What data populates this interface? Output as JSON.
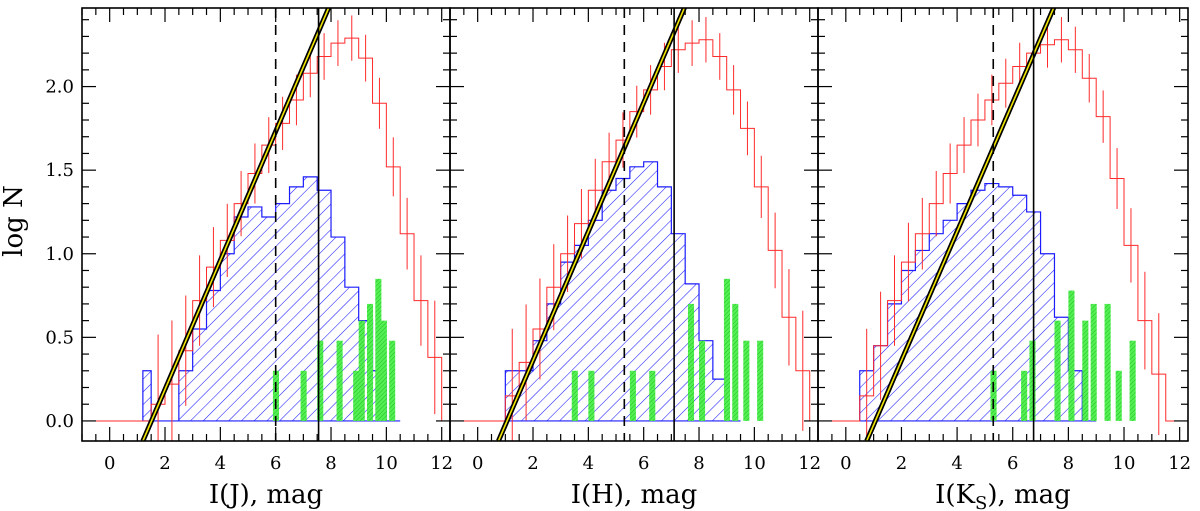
{
  "chart_data": {
    "type": "histogram",
    "ylabel": "log N",
    "ylim": [
      -0.12,
      2.47
    ],
    "xlim": [
      -1,
      12.3
    ],
    "xticks": [
      0,
      2,
      4,
      6,
      8,
      10,
      12
    ],
    "yticks": [
      0.0,
      0.5,
      1.0,
      1.5,
      2.0
    ],
    "ytick_labels": [
      "0.0",
      "0.5",
      "1.0",
      "1.5",
      "2.0"
    ],
    "colors": {
      "all": "#ff2a2a",
      "hatched": "#1c1cff",
      "green": "#22dd22",
      "fit": "#000000",
      "fit_inner": "#f0e600",
      "axis": "#000000"
    },
    "panels": [
      {
        "name": "I(J)",
        "xlabel_prefix": "I(J),  mag",
        "xlabel_sub": "",
        "xlabel_suffix": "",
        "dashed_x": 6.0,
        "solid_x": 7.55,
        "fit": {
          "x_start": 1.2,
          "slope": 0.375
        },
        "all_counts": [
          [
            -1.0,
            0
          ],
          [
            -0.5,
            0
          ],
          [
            0.0,
            0
          ],
          [
            0.5,
            0
          ],
          [
            1.0,
            0
          ],
          [
            1.5,
            0.1
          ],
          [
            2.0,
            0.22
          ],
          [
            2.5,
            0.42
          ],
          [
            3.0,
            0.72
          ],
          [
            3.5,
            0.92
          ],
          [
            4.0,
            1.08
          ],
          [
            4.5,
            1.3
          ],
          [
            5.0,
            1.48
          ],
          [
            5.5,
            1.65
          ],
          [
            6.0,
            1.78
          ],
          [
            6.5,
            1.92
          ],
          [
            7.0,
            2.08
          ],
          [
            7.5,
            2.18
          ],
          [
            8.0,
            2.26
          ],
          [
            8.5,
            2.29
          ],
          [
            9.0,
            2.17
          ],
          [
            9.5,
            1.9
          ],
          [
            10.0,
            1.52
          ],
          [
            10.5,
            1.12
          ],
          [
            11.0,
            0.72
          ],
          [
            11.5,
            0.38
          ],
          [
            12.0,
            0
          ]
        ],
        "hatched_counts": [
          [
            1.2,
            0.3
          ],
          [
            1.5,
            0
          ],
          [
            2.0,
            0
          ],
          [
            2.5,
            0.3
          ],
          [
            3.0,
            0.55
          ],
          [
            3.5,
            0.78
          ],
          [
            4.0,
            1.0
          ],
          [
            4.5,
            1.22
          ],
          [
            5.0,
            1.28
          ],
          [
            5.5,
            1.22
          ],
          [
            6.0,
            1.3
          ],
          [
            6.5,
            1.4
          ],
          [
            7.0,
            1.46
          ],
          [
            7.5,
            1.38
          ],
          [
            8.0,
            1.1
          ],
          [
            8.5,
            0.8
          ],
          [
            9.0,
            0.6
          ],
          [
            9.5,
            0.3
          ],
          [
            10.0,
            0
          ]
        ],
        "green_bars": [
          [
            5.9,
            0.3
          ],
          [
            6.9,
            0.3
          ],
          [
            7.5,
            0.48
          ],
          [
            8.2,
            0.48
          ],
          [
            8.8,
            0.3
          ],
          [
            9.0,
            0.6
          ],
          [
            9.3,
            0.7
          ],
          [
            9.6,
            0.85
          ],
          [
            9.8,
            0.6
          ],
          [
            10.1,
            0.48
          ]
        ]
      },
      {
        "name": "I(H)",
        "xlabel_prefix": "I(H),  mag",
        "xlabel_sub": "",
        "xlabel_suffix": "",
        "dashed_x": 5.3,
        "solid_x": 7.1,
        "fit": {
          "x_start": 0.75,
          "slope": 0.375
        },
        "all_counts": [
          [
            -1.0,
            0
          ],
          [
            -0.5,
            0
          ],
          [
            0.0,
            0
          ],
          [
            0.5,
            0
          ],
          [
            1.0,
            0.15
          ],
          [
            1.5,
            0.35
          ],
          [
            2.0,
            0.55
          ],
          [
            2.5,
            0.8
          ],
          [
            3.0,
            1.0
          ],
          [
            3.5,
            1.18
          ],
          [
            4.0,
            1.38
          ],
          [
            4.5,
            1.55
          ],
          [
            5.0,
            1.68
          ],
          [
            5.5,
            1.85
          ],
          [
            6.0,
            1.98
          ],
          [
            6.5,
            2.12
          ],
          [
            7.0,
            2.22
          ],
          [
            7.5,
            2.26
          ],
          [
            8.0,
            2.28
          ],
          [
            8.5,
            2.18
          ],
          [
            9.0,
            1.98
          ],
          [
            9.5,
            1.75
          ],
          [
            10.0,
            1.4
          ],
          [
            10.5,
            1.02
          ],
          [
            11.0,
            0.62
          ],
          [
            11.5,
            0.3
          ],
          [
            12.0,
            0
          ]
        ],
        "hatched_counts": [
          [
            1.0,
            0.3
          ],
          [
            1.5,
            0.3
          ],
          [
            2.0,
            0.48
          ],
          [
            2.5,
            0.7
          ],
          [
            3.0,
            0.95
          ],
          [
            3.5,
            1.05
          ],
          [
            4.0,
            1.2
          ],
          [
            4.5,
            1.38
          ],
          [
            5.0,
            1.45
          ],
          [
            5.5,
            1.52
          ],
          [
            6.0,
            1.55
          ],
          [
            6.5,
            1.4
          ],
          [
            7.0,
            1.12
          ],
          [
            7.5,
            0.82
          ],
          [
            8.0,
            0.48
          ],
          [
            8.5,
            0.25
          ],
          [
            9.0,
            0
          ]
        ],
        "green_bars": [
          [
            3.4,
            0.3
          ],
          [
            4.0,
            0.3
          ],
          [
            5.5,
            0.3
          ],
          [
            6.2,
            0.3
          ],
          [
            7.6,
            0.7
          ],
          [
            8.0,
            0.48
          ],
          [
            8.9,
            0.85
          ],
          [
            9.2,
            0.7
          ],
          [
            9.6,
            0.48
          ],
          [
            10.1,
            0.48
          ]
        ]
      },
      {
        "name": "I(KS)",
        "xlabel_prefix": "I(K",
        "xlabel_sub": "S",
        "xlabel_suffix": "),  mag",
        "dashed_x": 5.3,
        "solid_x": 6.75,
        "fit": {
          "x_start": 0.75,
          "slope": 0.375
        },
        "all_counts": [
          [
            -1.0,
            0
          ],
          [
            -0.5,
            0
          ],
          [
            0.0,
            0
          ],
          [
            0.5,
            0.15
          ],
          [
            1.0,
            0.45
          ],
          [
            1.5,
            0.72
          ],
          [
            2.0,
            0.95
          ],
          [
            2.5,
            1.12
          ],
          [
            3.0,
            1.3
          ],
          [
            3.5,
            1.48
          ],
          [
            4.0,
            1.65
          ],
          [
            4.5,
            1.8
          ],
          [
            5.0,
            1.92
          ],
          [
            5.5,
            2.02
          ],
          [
            6.0,
            2.12
          ],
          [
            6.5,
            2.2
          ],
          [
            7.0,
            2.25
          ],
          [
            7.5,
            2.28
          ],
          [
            8.0,
            2.22
          ],
          [
            8.5,
            2.05
          ],
          [
            9.0,
            1.82
          ],
          [
            9.5,
            1.45
          ],
          [
            10.0,
            1.05
          ],
          [
            10.5,
            0.6
          ],
          [
            11.0,
            0.28
          ],
          [
            11.5,
            0
          ],
          [
            12.0,
            0
          ]
        ],
        "hatched_counts": [
          [
            0.5,
            0.3
          ],
          [
            1.0,
            0.45
          ],
          [
            1.5,
            0.7
          ],
          [
            2.0,
            0.9
          ],
          [
            2.5,
            1.02
          ],
          [
            3.0,
            1.12
          ],
          [
            3.5,
            1.2
          ],
          [
            4.0,
            1.3
          ],
          [
            4.5,
            1.38
          ],
          [
            5.0,
            1.42
          ],
          [
            5.5,
            1.4
          ],
          [
            6.0,
            1.35
          ],
          [
            6.5,
            1.25
          ],
          [
            7.0,
            1.0
          ],
          [
            7.5,
            0.62
          ],
          [
            8.0,
            0.3
          ],
          [
            8.5,
            0
          ]
        ],
        "green_bars": [
          [
            5.2,
            0.3
          ],
          [
            6.3,
            0.3
          ],
          [
            6.6,
            0.48
          ],
          [
            7.5,
            0.6
          ],
          [
            8.0,
            0.78
          ],
          [
            8.5,
            0.6
          ],
          [
            8.8,
            0.7
          ],
          [
            9.3,
            0.7
          ],
          [
            9.7,
            0.3
          ],
          [
            10.2,
            0.48
          ]
        ]
      }
    ]
  }
}
